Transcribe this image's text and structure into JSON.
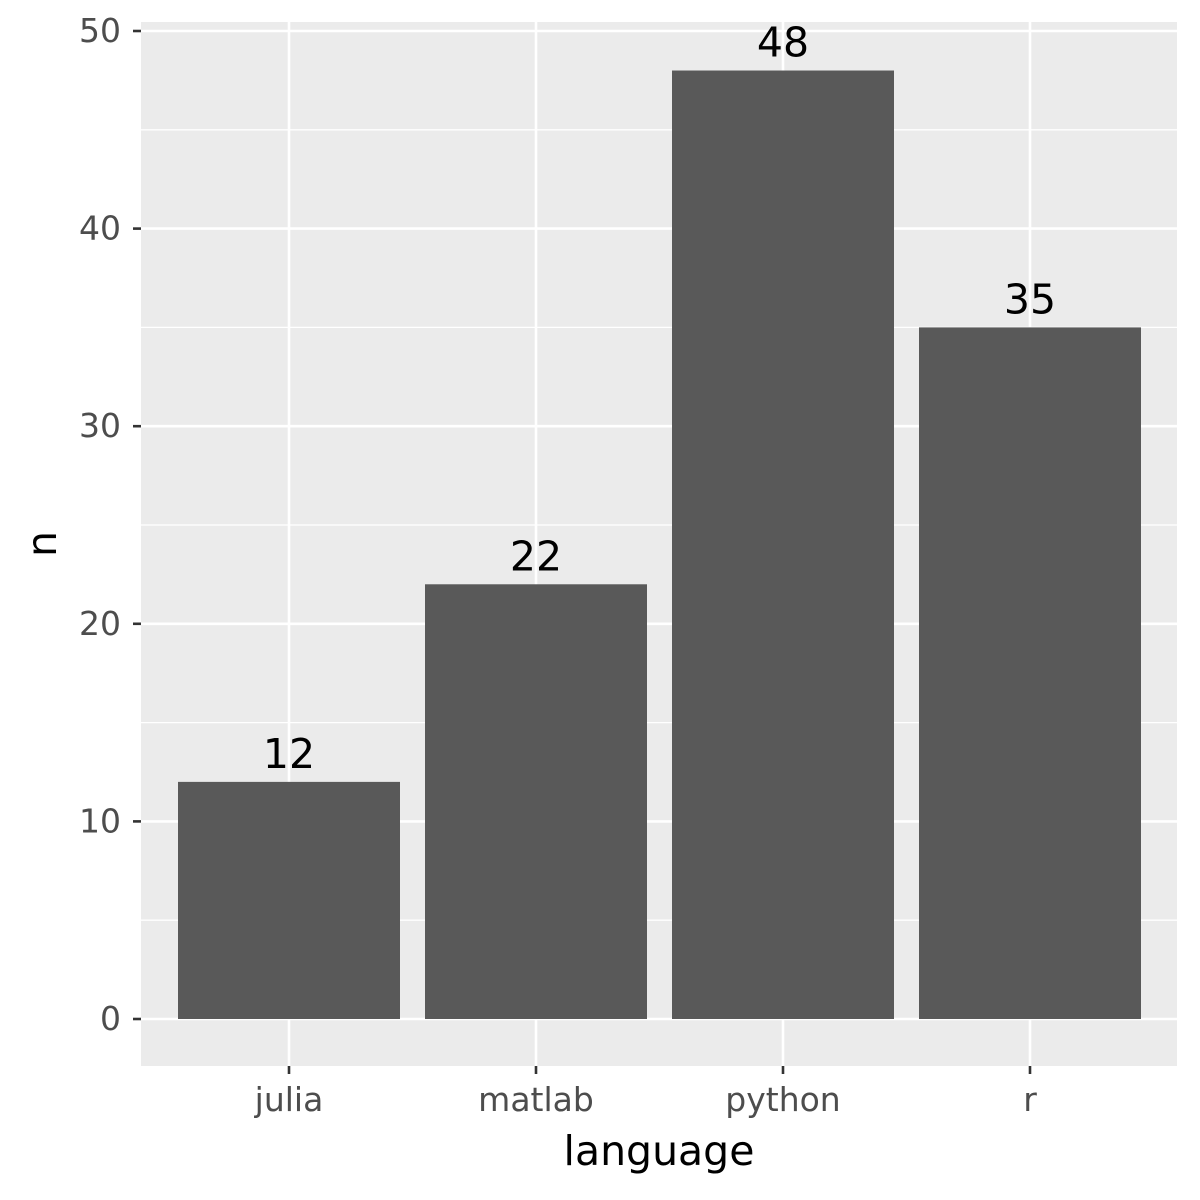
{
  "chart_data": {
    "type": "bar",
    "categories": [
      "julia",
      "matlab",
      "python",
      "r"
    ],
    "values": [
      12,
      22,
      48,
      35
    ],
    "data_labels": [
      "12",
      "22",
      "48",
      "35"
    ],
    "title": "",
    "xlabel": "language",
    "ylabel": "n",
    "ylim": [
      0,
      50
    ],
    "yticks": [
      0,
      10,
      20,
      30,
      40,
      50
    ],
    "ytick_labels": [
      "0",
      "10",
      "20",
      "30",
      "40",
      "50"
    ],
    "grid": true,
    "legend": "none",
    "colors": {
      "panel": "#ebebeb",
      "bar": "#595959",
      "grid": "#ffffff"
    }
  }
}
